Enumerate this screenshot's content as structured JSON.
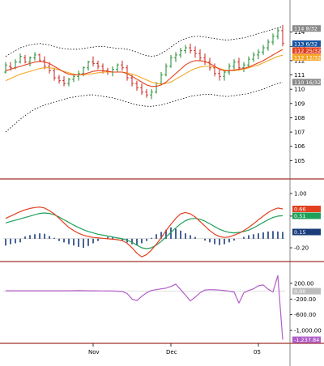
{
  "colors": {
    "bar_up": "#1b8a2e",
    "bar_down": "#c8231c",
    "bar_neutral": "#1a56a0",
    "ma_red": "#e2401f",
    "ma_orange": "#f5a623",
    "band": "#000000",
    "osc_red": "#e2401f",
    "osc_green": "#1fa05a",
    "hist": "#1a3c7a",
    "cci": "#b25fc8",
    "separator": "#a0332a",
    "grid": "#bfbfbf"
  },
  "chart_data": [
    {
      "type": "line",
      "panel": "price",
      "x_labels": [
        "Nov",
        "Dec",
        "05"
      ],
      "y_ticks": [
        "105",
        "106",
        "107",
        "108",
        "109",
        "110",
        "111",
        "112",
        "113",
        "114"
      ],
      "ylim": [
        104,
        115
      ],
      "badges": [
        {
          "text": "114 8/32",
          "color": "#ffffff",
          "bg": "#8a8a8a",
          "value": 114.25
        },
        {
          "text": "113 6/32",
          "color": "#ffffff",
          "bg": "#1a56a0",
          "value": 113.19
        },
        {
          "text": "112 25/32",
          "color": "#ffffff",
          "bg": "#e2401f",
          "value": 112.78
        },
        {
          "text": "112 12/32",
          "color": "#ffffff",
          "bg": "#f5a623",
          "value": 112.38
        },
        {
          "text": "110 16/32",
          "color": "#ffffff",
          "bg": "#8a8a8a",
          "value": 110.5
        }
      ],
      "ohlc": [
        [
          111.2,
          111.9,
          111.1,
          111.7
        ],
        [
          111.6,
          111.9,
          111.3,
          111.5
        ],
        [
          111.5,
          112.1,
          111.4,
          111.9
        ],
        [
          111.9,
          112.5,
          111.8,
          112.3
        ],
        [
          112.2,
          112.4,
          111.8,
          111.9
        ],
        [
          111.9,
          112.3,
          111.6,
          112.2
        ],
        [
          112.2,
          112.6,
          112.0,
          112.4
        ],
        [
          112.4,
          112.5,
          111.9,
          112.0
        ],
        [
          112.0,
          112.3,
          111.4,
          111.6
        ],
        [
          111.6,
          111.9,
          111.1,
          111.3
        ],
        [
          111.3,
          111.5,
          110.6,
          110.8
        ],
        [
          110.8,
          111.0,
          110.4,
          110.6
        ],
        [
          110.6,
          110.9,
          110.2,
          110.4
        ],
        [
          110.4,
          110.8,
          110.2,
          110.7
        ],
        [
          110.7,
          111.1,
          110.5,
          110.9
        ],
        [
          110.9,
          111.3,
          110.6,
          111.1
        ],
        [
          111.1,
          111.6,
          110.9,
          111.5
        ],
        [
          111.5,
          112.0,
          111.3,
          111.9
        ],
        [
          111.9,
          112.3,
          111.6,
          111.8
        ],
        [
          111.8,
          112.0,
          111.4,
          111.6
        ],
        [
          111.6,
          111.8,
          111.1,
          111.3
        ],
        [
          111.3,
          111.5,
          111.0,
          111.2
        ],
        [
          111.2,
          111.6,
          110.9,
          111.4
        ],
        [
          111.4,
          111.8,
          111.2,
          111.7
        ],
        [
          111.7,
          112.0,
          111.3,
          111.5
        ],
        [
          111.5,
          111.7,
          110.6,
          110.8
        ],
        [
          110.8,
          111.0,
          110.2,
          110.4
        ],
        [
          110.4,
          110.6,
          109.9,
          110.1
        ],
        [
          110.1,
          110.4,
          109.6,
          109.8
        ],
        [
          109.8,
          110.0,
          109.4,
          109.6
        ],
        [
          109.6,
          110.0,
          109.3,
          109.8
        ],
        [
          109.8,
          110.5,
          109.7,
          110.4
        ],
        [
          110.4,
          111.2,
          110.3,
          111.0
        ],
        [
          111.0,
          111.8,
          110.9,
          111.6
        ],
        [
          111.6,
          112.4,
          111.5,
          112.2
        ],
        [
          112.2,
          112.6,
          111.9,
          112.4
        ],
        [
          112.4,
          112.9,
          112.2,
          112.7
        ],
        [
          112.7,
          113.1,
          112.5,
          112.9
        ],
        [
          112.9,
          113.2,
          112.5,
          112.7
        ],
        [
          112.7,
          113.0,
          112.2,
          112.5
        ],
        [
          112.5,
          112.8,
          112.0,
          112.2
        ],
        [
          112.2,
          112.5,
          111.7,
          111.9
        ],
        [
          111.9,
          112.2,
          111.3,
          111.5
        ],
        [
          111.5,
          111.8,
          110.9,
          111.1
        ],
        [
          111.1,
          111.4,
          110.6,
          110.9
        ],
        [
          110.9,
          111.3,
          110.6,
          111.2
        ],
        [
          111.2,
          111.8,
          111.0,
          111.6
        ],
        [
          111.6,
          112.1,
          111.4,
          111.9
        ],
        [
          111.9,
          112.2,
          111.3,
          111.5
        ],
        [
          111.5,
          111.9,
          111.2,
          111.7
        ],
        [
          111.7,
          112.3,
          111.5,
          112.1
        ],
        [
          112.1,
          112.6,
          111.9,
          112.4
        ],
        [
          112.4,
          112.8,
          112.1,
          112.6
        ],
        [
          112.6,
          113.1,
          112.4,
          112.9
        ],
        [
          112.9,
          113.5,
          112.7,
          113.3
        ],
        [
          113.3,
          113.9,
          113.1,
          113.7
        ],
        [
          113.7,
          114.3,
          113.5,
          114.1
        ],
        [
          114.1,
          114.5,
          113.0,
          113.2
        ]
      ],
      "ma_red": [
        111.3,
        111.4,
        111.5,
        111.6,
        111.7,
        111.8,
        111.9,
        111.95,
        111.9,
        111.8,
        111.6,
        111.4,
        111.2,
        111.05,
        111.0,
        111.0,
        111.05,
        111.15,
        111.25,
        111.3,
        111.3,
        111.25,
        111.2,
        111.2,
        111.2,
        111.1,
        110.9,
        110.7,
        110.5,
        110.3,
        110.2,
        110.2,
        110.3,
        110.5,
        110.8,
        111.1,
        111.4,
        111.7,
        111.9,
        112.0,
        112.0,
        111.95,
        111.8,
        111.6,
        111.4,
        111.3,
        111.3,
        111.35,
        111.4,
        111.45,
        111.55,
        111.7,
        111.85,
        112.0,
        112.2,
        112.4,
        112.6,
        112.78
      ],
      "ma_orange": [
        110.6,
        110.75,
        110.9,
        111.05,
        111.15,
        111.25,
        111.35,
        111.45,
        111.5,
        111.5,
        111.45,
        111.35,
        111.25,
        111.15,
        111.05,
        111.0,
        111.0,
        111.05,
        111.1,
        111.15,
        111.2,
        111.2,
        111.2,
        111.2,
        111.2,
        111.15,
        111.05,
        110.95,
        110.8,
        110.65,
        110.5,
        110.4,
        110.35,
        110.4,
        110.5,
        110.7,
        110.9,
        111.1,
        111.3,
        111.45,
        111.55,
        111.6,
        111.6,
        111.55,
        111.45,
        111.35,
        111.3,
        111.3,
        111.35,
        111.4,
        111.5,
        111.6,
        111.7,
        111.85,
        112.0,
        112.15,
        112.3,
        112.38
      ],
      "band_upper": [
        112.3,
        112.5,
        112.7,
        112.9,
        113.0,
        113.1,
        113.15,
        113.2,
        113.15,
        113.1,
        113.0,
        112.9,
        112.85,
        112.8,
        112.8,
        112.8,
        112.85,
        112.9,
        112.95,
        113.0,
        113.0,
        112.95,
        112.9,
        112.85,
        112.85,
        112.8,
        112.7,
        112.6,
        112.45,
        112.35,
        112.3,
        112.35,
        112.5,
        112.7,
        112.95,
        113.2,
        113.4,
        113.55,
        113.65,
        113.7,
        113.7,
        113.65,
        113.6,
        113.55,
        113.5,
        113.45,
        113.45,
        113.5,
        113.55,
        113.6,
        113.7,
        113.8,
        113.9,
        114.0,
        114.1,
        114.2,
        114.3,
        114.4
      ],
      "band_lower": [
        107.0,
        107.3,
        107.6,
        107.9,
        108.15,
        108.4,
        108.6,
        108.75,
        108.9,
        109.0,
        109.1,
        109.2,
        109.3,
        109.4,
        109.45,
        109.5,
        109.55,
        109.6,
        109.6,
        109.55,
        109.5,
        109.45,
        109.4,
        109.3,
        109.2,
        109.1,
        109.0,
        108.9,
        108.85,
        108.8,
        108.8,
        108.85,
        108.9,
        109.0,
        109.1,
        109.2,
        109.3,
        109.4,
        109.5,
        109.55,
        109.6,
        109.65,
        109.65,
        109.6,
        109.55,
        109.5,
        109.5,
        109.55,
        109.6,
        109.65,
        109.7,
        109.8,
        109.9,
        110.0,
        110.15,
        110.3,
        110.4,
        110.5
      ]
    },
    {
      "type": "line",
      "panel": "oscillator",
      "y_ticks": [
        "1.00",
        "0.50",
        "-0.20"
      ],
      "ylim": [
        -0.45,
        1.25
      ],
      "badges": [
        {
          "text": "0.66",
          "color": "#ffffff",
          "bg": "#e2401f",
          "value": 0.66
        },
        {
          "text": "0.51",
          "color": "#ffffff",
          "bg": "#1fa05a",
          "value": 0.51
        },
        {
          "text": "0.15",
          "color": "#ffffff",
          "bg": "#1a3c7a",
          "value": 0.15
        }
      ],
      "line_red": [
        0.45,
        0.5,
        0.55,
        0.6,
        0.64,
        0.67,
        0.69,
        0.7,
        0.68,
        0.62,
        0.55,
        0.45,
        0.35,
        0.25,
        0.18,
        0.12,
        0.08,
        0.05,
        0.03,
        0.02,
        0.01,
        0.0,
        -0.01,
        -0.02,
        -0.04,
        -0.1,
        -0.2,
        -0.32,
        -0.4,
        -0.35,
        -0.25,
        -0.12,
        0.02,
        0.18,
        0.32,
        0.45,
        0.55,
        0.58,
        0.55,
        0.48,
        0.38,
        0.28,
        0.18,
        0.1,
        0.05,
        0.03,
        0.04,
        0.08,
        0.12,
        0.18,
        0.25,
        0.33,
        0.42,
        0.5,
        0.58,
        0.64,
        0.68,
        0.66
      ],
      "line_green": [
        0.35,
        0.38,
        0.41,
        0.44,
        0.47,
        0.5,
        0.53,
        0.56,
        0.57,
        0.56,
        0.53,
        0.48,
        0.42,
        0.36,
        0.3,
        0.25,
        0.2,
        0.16,
        0.13,
        0.1,
        0.08,
        0.06,
        0.04,
        0.02,
        0.0,
        -0.03,
        -0.08,
        -0.14,
        -0.2,
        -0.22,
        -0.2,
        -0.14,
        -0.06,
        0.04,
        0.14,
        0.24,
        0.33,
        0.4,
        0.44,
        0.45,
        0.43,
        0.39,
        0.33,
        0.27,
        0.21,
        0.17,
        0.14,
        0.13,
        0.14,
        0.16,
        0.19,
        0.24,
        0.3,
        0.36,
        0.42,
        0.47,
        0.5,
        0.51
      ],
      "histogram": [
        -0.15,
        -0.12,
        -0.1,
        -0.08,
        0.05,
        0.08,
        0.1,
        0.12,
        0.11,
        0.06,
        0.02,
        -0.05,
        -0.08,
        -0.12,
        -0.15,
        -0.18,
        -0.2,
        -0.16,
        -0.1,
        -0.05,
        0.0,
        0.04,
        0.03,
        0.0,
        -0.04,
        -0.08,
        -0.12,
        -0.14,
        -0.1,
        -0.05,
        0.02,
        0.1,
        0.15,
        0.2,
        0.25,
        0.22,
        0.18,
        0.12,
        0.08,
        0.04,
        0.0,
        -0.04,
        -0.08,
        -0.12,
        -0.14,
        -0.12,
        -0.08,
        -0.04,
        0.0,
        0.04,
        0.08,
        0.1,
        0.12,
        0.14,
        0.16,
        0.17,
        0.16,
        0.15
      ]
    },
    {
      "type": "line",
      "panel": "cci",
      "y_ticks": [
        "200.00",
        "-200.00",
        "-600.00",
        "-1,000.00"
      ],
      "ylim": [
        -1350,
        550
      ],
      "badges": [
        {
          "text": "0.00",
          "color": "#ffffff",
          "bg": "#bdbdbd",
          "value": 0
        },
        {
          "text": "-1,237.84",
          "color": "#ffffff",
          "bg": "#b25fc8",
          "value": -1237.84
        }
      ],
      "values": [
        10,
        10,
        10,
        10,
        10,
        10,
        10,
        10,
        10,
        10,
        10,
        10,
        10,
        12,
        14,
        15,
        14,
        12,
        10,
        8,
        6,
        5,
        4,
        0,
        -10,
        -60,
        -200,
        -240,
        -130,
        -40,
        20,
        40,
        60,
        80,
        120,
        180,
        40,
        -100,
        -250,
        -150,
        -40,
        30,
        40,
        35,
        30,
        15,
        0,
        -20,
        -300,
        -40,
        20,
        60,
        140,
        160,
        50,
        -20,
        400,
        -1237.84
      ]
    }
  ]
}
